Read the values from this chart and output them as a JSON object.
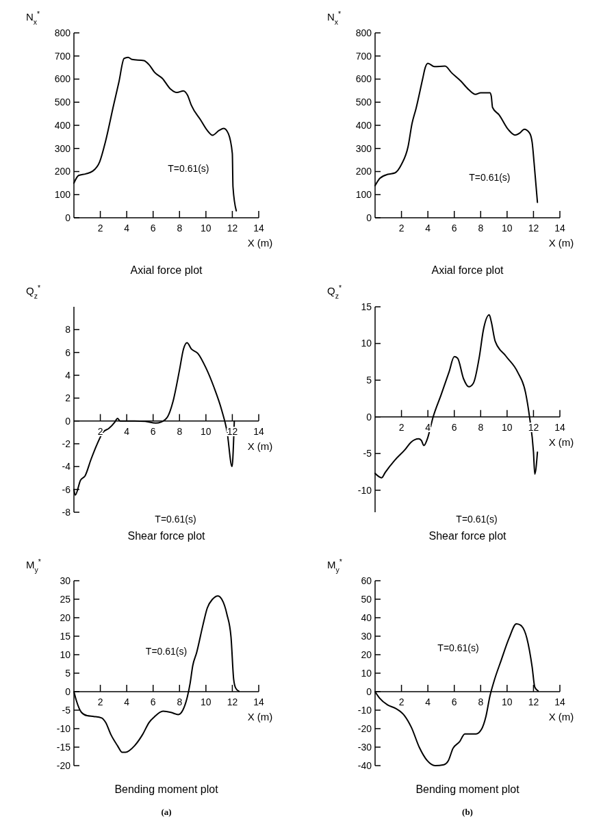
{
  "chart_data": [
    {
      "type": "line",
      "title": "Axial force plot",
      "xlabel": "X (m)",
      "ylabel": "N$_{x}$$^{*}$",
      "annotations": [
        "T=0.61(s)"
      ],
      "xlim": [
        0,
        14
      ],
      "xticks": [
        2,
        4,
        6,
        8,
        10,
        12,
        14
      ],
      "ylim": [
        0,
        800
      ],
      "yticks": [
        0,
        100,
        200,
        300,
        400,
        500,
        600,
        700,
        800
      ],
      "series": [
        {
          "color": "#000000",
          "x": [
            0,
            0.35,
            0.9,
            1.4,
            1.95,
            2.4,
            3.0,
            3.4,
            3.8,
            4.1,
            4.4,
            5.3,
            5.7,
            6.1,
            6.7,
            7.3,
            7.8,
            8.3,
            8.6,
            8.9,
            9.6,
            10.1,
            10.5,
            11.0,
            11.35,
            11.7,
            12.0,
            12.05,
            12.3
          ],
          "values": [
            150,
            183,
            190,
            201,
            242,
            332,
            486,
            585,
            689,
            694,
            685,
            680,
            662,
            630,
            603,
            558,
            542,
            549,
            531,
            486,
            423,
            378,
            357,
            378,
            387,
            364,
            278,
            134,
            30
          ]
        }
      ]
    },
    {
      "type": "line",
      "title": "Axial force plot",
      "xlabel": "X (m)",
      "ylabel": "N$_{x}$$^{*}$",
      "annotations": [
        "T=0.61(s)"
      ],
      "xlim": [
        0,
        14
      ],
      "xticks": [
        2,
        4,
        6,
        8,
        10,
        12,
        14
      ],
      "ylim": [
        0,
        800
      ],
      "yticks": [
        0,
        100,
        200,
        300,
        400,
        500,
        600,
        700,
        800
      ],
      "series": [
        {
          "color": "#000000",
          "x": [
            0,
            0.37,
            0.97,
            1.5,
            2.0,
            2.5,
            2.8,
            3.1,
            3.6,
            3.8,
            4.0,
            4.5,
            5.3,
            5.8,
            6.5,
            7.1,
            7.6,
            8.0,
            8.7,
            8.8,
            8.9,
            9.4,
            10.1,
            10.6,
            10.97,
            11.3,
            11.7,
            11.9,
            12.05,
            12.3
          ],
          "values": [
            139,
            171,
            188,
            194,
            231,
            308,
            408,
            472,
            600,
            650,
            668,
            654,
            656,
            627,
            591,
            554,
            534,
            541,
            541,
            527,
            477,
            445,
            381,
            358,
            367,
            383,
            367,
            326,
            235,
            67
          ]
        }
      ]
    },
    {
      "type": "line",
      "title": "Shear force plot",
      "xlabel": "X (m)",
      "ylabel": "Q$_{z}$$^{*}$",
      "annotations": [
        "T=0.61(s)"
      ],
      "xlim": [
        0,
        14
      ],
      "xticks": [
        2,
        4,
        6,
        8,
        10,
        12,
        14
      ],
      "ylim": [
        -8,
        10
      ],
      "yticks": [
        -8,
        -6,
        -4,
        -2,
        0,
        2,
        4,
        6,
        8
      ],
      "series": [
        {
          "color": "#000000",
          "x": [
            0,
            0.1,
            0.5,
            0.85,
            1.3,
            1.75,
            2.2,
            2.65,
            3.1,
            3.3,
            3.5,
            4.6,
            5.4,
            6.2,
            6.6,
            7.1,
            7.5,
            8.0,
            8.3,
            8.57,
            8.9,
            9.4,
            10.0,
            10.6,
            11.2,
            11.6,
            11.98,
            12.1,
            12.15
          ],
          "values": [
            -6.0,
            -6.5,
            -5.2,
            -4.8,
            -3.35,
            -2.05,
            -1.0,
            -0.65,
            -0.1,
            0.22,
            0,
            0,
            -0.04,
            -0.19,
            -0.1,
            0.37,
            1.67,
            4.47,
            6.3,
            6.85,
            6.3,
            5.9,
            4.65,
            2.98,
            0.93,
            -0.93,
            -4.0,
            -1.67,
            0
          ]
        }
      ]
    },
    {
      "type": "line",
      "title": "Shear force plot",
      "xlabel": "X (m)",
      "ylabel": "Q$_{z}$$^{*}$",
      "annotations": [
        "T=0.61(s)"
      ],
      "xlim": [
        0,
        14
      ],
      "xticks": [
        2,
        4,
        6,
        8,
        10,
        12,
        14
      ],
      "ylim": [
        -13,
        15
      ],
      "yticks": [
        -10,
        -5,
        0,
        5,
        10,
        15
      ],
      "series": [
        {
          "color": "#000000",
          "x": [
            0,
            0.5,
            0.76,
            1.5,
            2.3,
            2.7,
            3.3,
            3.5,
            3.7,
            3.96,
            4.4,
            5.0,
            5.6,
            6.0,
            6.25,
            6.7,
            7.1,
            7.45,
            7.9,
            8.2,
            8.65,
            8.8,
            9.1,
            9.9,
            10.8,
            11.4,
            11.7,
            12.0,
            12.1,
            12.3
          ],
          "values": [
            -7.7,
            -8.3,
            -7.6,
            -5.9,
            -4.4,
            -3.5,
            -3.0,
            -3.2,
            -3.9,
            -3.0,
            0,
            3.0,
            6.1,
            8.2,
            8.0,
            5.2,
            4.1,
            4.6,
            8.2,
            11.8,
            13.9,
            13.0,
            10.3,
            8.3,
            6.1,
            3.3,
            0,
            -4.8,
            -7.8,
            -4.8
          ]
        }
      ]
    },
    {
      "type": "line",
      "title": "Bending moment plot",
      "xlabel": "X (m)",
      "ylabel": "M$_{y}$$^{*}$",
      "annotations": [
        "T=0.61(s)",
        "(a)"
      ],
      "xlim": [
        0,
        14
      ],
      "xticks": [
        2,
        4,
        6,
        8,
        10,
        12,
        14
      ],
      "ylim": [
        -20,
        30
      ],
      "yticks": [
        -20,
        -15,
        -10,
        -5,
        0,
        5,
        10,
        15,
        20,
        25,
        30
      ],
      "series": [
        {
          "color": "#000000",
          "x": [
            0,
            0.2,
            0.57,
            1.0,
            1.5,
            2.1,
            2.4,
            2.8,
            3.3,
            3.66,
            3.9,
            4.6,
            5.2,
            5.7,
            6.1,
            6.75,
            7.35,
            7.9,
            8.25,
            8.55,
            8.8,
            9.0,
            9.3,
            9.76,
            10.1,
            10.5,
            10.9,
            11.2,
            11.6,
            11.9,
            12.1,
            12.25,
            12.5
          ],
          "values": [
            0,
            -2.6,
            -5.6,
            -6.5,
            -6.7,
            -7.1,
            -8.3,
            -11.6,
            -14.6,
            -16.4,
            -16.4,
            -14.6,
            -11.6,
            -8.3,
            -6.8,
            -5.3,
            -5.6,
            -6.2,
            -5.0,
            -2.0,
            2.2,
            7.0,
            10.6,
            17.8,
            22.6,
            25.0,
            25.9,
            25.0,
            20.8,
            14.8,
            3.4,
            1.0,
            0.1
          ]
        }
      ]
    },
    {
      "type": "line",
      "title": "Bending moment plot",
      "xlabel": "X (m)",
      "ylabel": "M$_{y}$$^{*}$",
      "annotations": [
        "T=0.61(s)",
        "(b)"
      ],
      "xlim": [
        0,
        14
      ],
      "xticks": [
        2,
        4,
        6,
        8,
        10,
        12,
        14
      ],
      "ylim": [
        -40,
        60
      ],
      "yticks": [
        -40,
        -30,
        -20,
        -10,
        0,
        10,
        20,
        30,
        40,
        50,
        60
      ],
      "series": [
        {
          "color": "#000000",
          "x": [
            0,
            0.35,
            0.95,
            1.55,
            2.2,
            2.75,
            3.35,
            3.95,
            4.55,
            5.2,
            5.55,
            5.9,
            6.4,
            6.8,
            7.3,
            7.65,
            8.05,
            8.4,
            8.7,
            9.0,
            9.55,
            10.15,
            10.7,
            11.0,
            11.5,
            11.9,
            12.1,
            12.35
          ],
          "values": [
            0,
            -3.6,
            -7.2,
            -9.0,
            -12.7,
            -19.3,
            -30.1,
            -37.3,
            -40.0,
            -39.5,
            -37.3,
            -30.7,
            -27.1,
            -22.9,
            -22.9,
            -22.9,
            -20.5,
            -13.3,
            -2.4,
            5.4,
            16.9,
            28.9,
            36.7,
            36.1,
            28.9,
            13.3,
            2.4,
            0.4
          ]
        }
      ]
    }
  ]
}
